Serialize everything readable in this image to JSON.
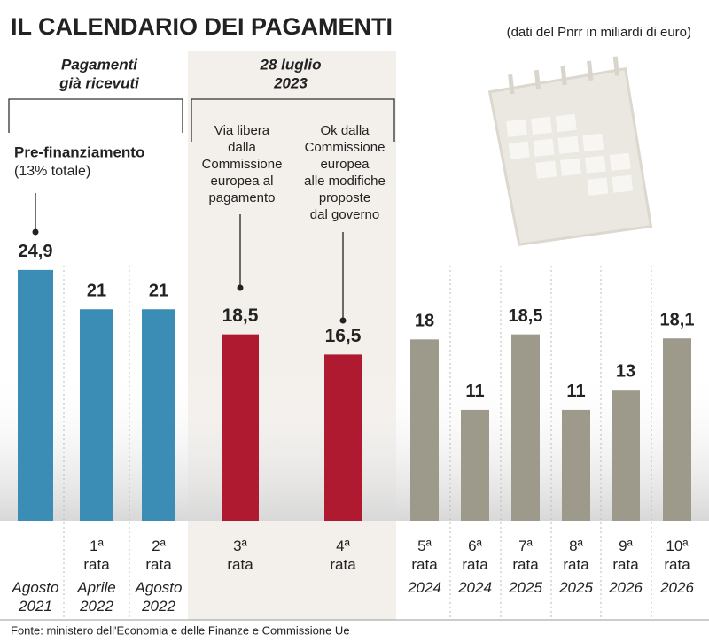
{
  "chart_data": {
    "type": "bar",
    "title": "IL CALENDARIO DEI PAGAMENTI",
    "subtitle": "(dati del Pnrr in miliardi di euro)",
    "categories": [
      null,
      "1ª rata",
      "2ª rata",
      "3ª rata",
      "4ª rata",
      "5ª rata",
      "6ª rata",
      "7ª rata",
      "8ª rata",
      "9ª rata",
      "10ª rata"
    ],
    "periods": [
      "Agosto 2021",
      "Aprile 2022",
      "Agosto 2022",
      null,
      null,
      "2024",
      "2024",
      "2025",
      "2025",
      "2026",
      "2026"
    ],
    "values": [
      24.9,
      21,
      21,
      18.5,
      16.5,
      18,
      11,
      18.5,
      11,
      13,
      18.1
    ],
    "value_labels": [
      "24,9",
      "21",
      "21",
      "18,5",
      "16,5",
      "18",
      "11",
      "18,5",
      "11",
      "13",
      "18,1"
    ],
    "colors": [
      "#3b8db5",
      "#3b8db5",
      "#3b8db5",
      "#b01a30",
      "#b01a30",
      "#9d9a8b",
      "#9d9a8b",
      "#9d9a8b",
      "#9d9a8b",
      "#9d9a8b",
      "#9d9a8b"
    ],
    "annotations": {
      "received": [
        "Pagamenti",
        "già ricevuti"
      ],
      "date": [
        "28 luglio",
        "2023"
      ],
      "prefinancing": "Pre-finanziamento",
      "prefinancing_note": "(13% totale)",
      "approval": [
        "Via libera",
        "dalla",
        "Commissione",
        "europea al",
        "pagamento"
      ],
      "changes": [
        "Ok dalla",
        "Commissione",
        "europea",
        "alle modifiche",
        "proposte",
        "dal governo"
      ]
    },
    "source": "Fonte: ministero dell'Economia e delle Finanze e Commissione Ue"
  }
}
